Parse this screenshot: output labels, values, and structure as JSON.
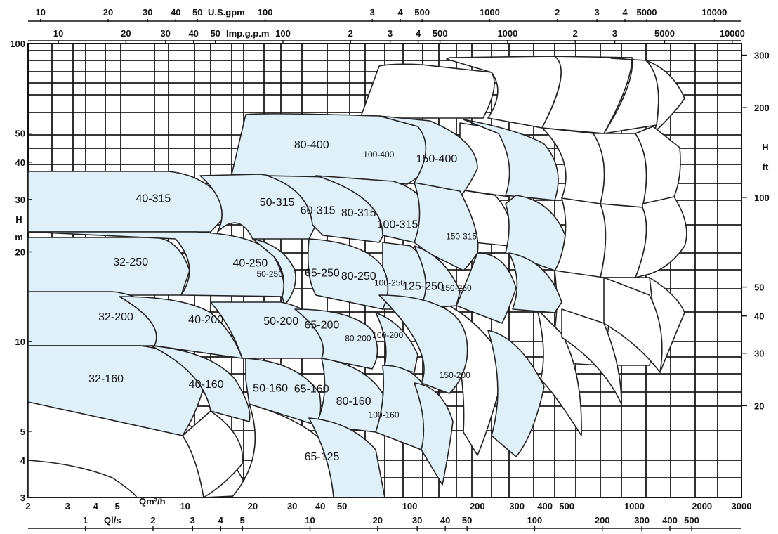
{
  "chart_data": {
    "type": "area",
    "title": "",
    "axes": {
      "top_outer": {
        "label": "U.S.gpm",
        "ticks": [
          "10",
          "20",
          "30",
          "40",
          "50",
          "100",
          "3",
          "4",
          "500",
          "1000",
          "2",
          "3",
          "4",
          "5000",
          "10000"
        ]
      },
      "top_inner": {
        "label": "Imp.g.p.m",
        "ticks": [
          "10",
          "20",
          "30",
          "40",
          "50",
          "100",
          "2",
          "3",
          "4",
          "500",
          "1000",
          "2",
          "3",
          "5000",
          "10000"
        ]
      },
      "left": {
        "label_top": "H",
        "label_bottom": "m",
        "ticks": [
          "100",
          "50",
          "40",
          "30",
          "20",
          "10",
          "5",
          "4",
          "3"
        ],
        "range_m": [
          3,
          100
        ],
        "scale": "log"
      },
      "right": {
        "label_top": "H",
        "label_bottom": "ft",
        "ticks": [
          "300",
          "200",
          "100",
          "50",
          "40",
          "30",
          "20"
        ],
        "scale": "log"
      },
      "bottom_inner": {
        "label": "Qm³/h",
        "ticks": [
          "2",
          "3",
          "4",
          "5",
          "10",
          "20",
          "30",
          "40",
          "50",
          "100",
          "200",
          "300",
          "400",
          "500",
          "1000",
          "2000",
          "3000"
        ],
        "range": [
          2,
          3000
        ],
        "scale": "log"
      },
      "bottom_outer": {
        "label": "Ql/s",
        "ticks": [
          "1",
          "2",
          "3",
          "4",
          "5",
          "10",
          "20",
          "30",
          "40",
          "50",
          "100",
          "200",
          "300",
          "400",
          "500"
        ]
      }
    },
    "grid": true,
    "shaded_color": "#dff0f8",
    "regions": [
      {
        "label": "80-400",
        "qmin": 17.3,
        "qmax": 77.4,
        "hmin": 38.1,
        "hmax": 55.7,
        "shaded": true
      },
      {
        "label": "100-400",
        "qmin": 46.5,
        "qmax": 113.9,
        "hmin": 33,
        "hmax": 55.7,
        "shaded": true
      },
      {
        "label": "150-400",
        "qmin": 76.5,
        "qmax": 227.1,
        "hmin": 30.9,
        "hmax": 55,
        "shaded": true
      },
      {
        "label": "40-315",
        "qmin": 2.0,
        "qmax": 26.1,
        "hmin": 24.2,
        "hmax": 38.1,
        "shaded": true
      },
      {
        "label": "50-315",
        "qmin": 15.8,
        "qmax": 41.7,
        "hmin": 23.1,
        "hmax": 37.6,
        "shaded": true
      },
      {
        "label": "60-315",
        "qmin": 26.1,
        "qmax": 58.2,
        "hmin": 21.3,
        "hmax": 36.1,
        "shaded": true
      },
      {
        "label": "80-315",
        "qmin": 41.7,
        "qmax": 84.2,
        "hmin": 20.8,
        "hmax": 35.6,
        "shaded": true
      },
      {
        "label": "100-315",
        "qmin": 58.2,
        "qmax": 133.5,
        "hmin": 18.2,
        "hmax": 34,
        "shaded": true
      },
      {
        "label": "150-315",
        "qmin": 127.5,
        "qmax": 226.3,
        "hmin": 17.8,
        "hmax": 29.2,
        "shaded": true
      },
      {
        "label": "32-250",
        "qmin": 2.0,
        "qmax": 16.4,
        "hmin": 14.7,
        "hmax": 23.5,
        "shaded": true
      },
      {
        "label": "40-250",
        "qmin": 12.8,
        "qmax": 29.7,
        "hmin": 14.7,
        "hmax": 23.1,
        "shaded": true
      },
      {
        "label": "50-250",
        "qmin": 19.1,
        "qmax": 29.7,
        "hmin": 13.1,
        "hmax": 22.2,
        "shaded": true
      },
      {
        "label": "65-250",
        "qmin": 28.6,
        "qmax": 58.2,
        "hmin": 12.9,
        "hmax": 22.6,
        "shaded": true
      },
      {
        "label": "80-250",
        "qmin": 41.7,
        "qmax": 84.2,
        "hmin": 12.9,
        "hmax": 21.6,
        "shaded": true
      },
      {
        "label": "100-250",
        "qmin": 59.7,
        "qmax": 111.1,
        "hmin": 12.1,
        "hmax": 20.9,
        "shaded": true
      },
      {
        "label": "125-250",
        "qmin": 86.3,
        "qmax": 152.1,
        "hmin": 11.6,
        "hmax": 20.5,
        "shaded": true
      },
      {
        "label": "150-250",
        "qmin": 111.1,
        "qmax": 233.6,
        "hmin": 11.4,
        "hmax": 20.5,
        "shaded": true
      },
      {
        "label": "32-200",
        "qmin": 2.0,
        "qmax": 12.1,
        "hmin": 9.8,
        "hmax": 15.1,
        "shaded": true
      },
      {
        "label": "40-200",
        "qmin": 7.5,
        "qmax": 20.4,
        "hmin": 9.5,
        "hmax": 14.9,
        "shaded": true
      },
      {
        "label": "50-200",
        "qmin": 17.7,
        "qmax": 40.4,
        "hmin": 9.3,
        "hmax": 14.9,
        "shaded": true
      },
      {
        "label": "65-200",
        "qmin": 29.7,
        "qmax": 55.6,
        "hmin": 9.1,
        "hmax": 14.4,
        "shaded": true
      },
      {
        "label": "80-200",
        "qmin": 44.2,
        "qmax": 78.4,
        "hmin": 8.2,
        "hmax": 13.1,
        "shaded": true
      },
      {
        "label": "100-200",
        "qmin": 54.3,
        "qmax": 117.4,
        "hmin": 8.6,
        "hmax": 13.1,
        "shaded": true
      },
      {
        "label": "150-200",
        "qmin": 111.1,
        "qmax": 227.1,
        "hmin": 5.9,
        "hmax": 10.3,
        "shaded": true
      },
      {
        "label": "32-160",
        "qmin": 2.0,
        "qmax": 9.9,
        "hmin": 5.8,
        "hmax": 9.8,
        "shaded": true
      },
      {
        "label": "40-160",
        "qmin": 8.6,
        "qmax": 17.9,
        "hmin": 5.5,
        "hmax": 9.5,
        "shaded": true
      },
      {
        "label": "50-160",
        "qmin": 16.9,
        "qmax": 34.0,
        "hmin": 5.3,
        "hmax": 9.3,
        "shaded": true
      },
      {
        "label": "65-160",
        "qmin": 27.6,
        "qmax": 48.4,
        "hmin": 5.3,
        "hmax": 9.2,
        "shaded": true
      },
      {
        "label": "80-160",
        "qmin": 44.0,
        "qmax": 72.0,
        "hmin": 4.9,
        "hmax": 8.2,
        "shaded": true
      },
      {
        "label": "100-160",
        "qmin": 57.7,
        "qmax": 101.9,
        "hmin": 4.5,
        "hmax": 7.3,
        "shaded": true
      },
      {
        "label": "65-125",
        "qmin": 33.1,
        "qmax": 50.0,
        "hmin": 3.1,
        "hmax": 5.5,
        "shaded": true
      }
    ]
  }
}
